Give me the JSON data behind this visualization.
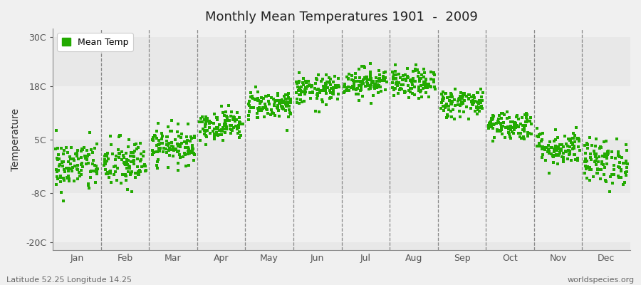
{
  "title": "Monthly Mean Temperatures 1901  -  2009",
  "ylabel": "Temperature",
  "yticks": [
    -20,
    -8,
    5,
    18,
    30
  ],
  "ytick_labels": [
    "-20C",
    "-8C",
    "5C",
    "18C",
    "30C"
  ],
  "ylim": [
    -22,
    32
  ],
  "months": [
    "Jan",
    "Feb",
    "Mar",
    "Apr",
    "May",
    "Jun",
    "Jul",
    "Aug",
    "Sep",
    "Oct",
    "Nov",
    "Dec"
  ],
  "dot_color": "#22aa00",
  "plot_bg_color": "#f0f0f0",
  "fig_bg_color": "#f0f0f0",
  "legend_label": "Mean Temp",
  "footer_left": "Latitude 52.25 Longitude 14.25",
  "footer_right": "worldspecies.org",
  "years": 109,
  "monthly_means": [
    -1.5,
    -1.0,
    3.5,
    8.5,
    13.5,
    17.0,
    19.0,
    18.5,
    14.0,
    8.5,
    3.0,
    -0.5
  ],
  "monthly_stds": [
    3.2,
    3.2,
    2.2,
    1.8,
    1.8,
    1.8,
    1.8,
    1.8,
    1.8,
    1.8,
    2.2,
    2.8
  ],
  "seed": 42,
  "band_colors": [
    "#e8e8e8",
    "#f0f0f0"
  ],
  "dashed_line_color": "#888888",
  "spine_color": "#888888"
}
